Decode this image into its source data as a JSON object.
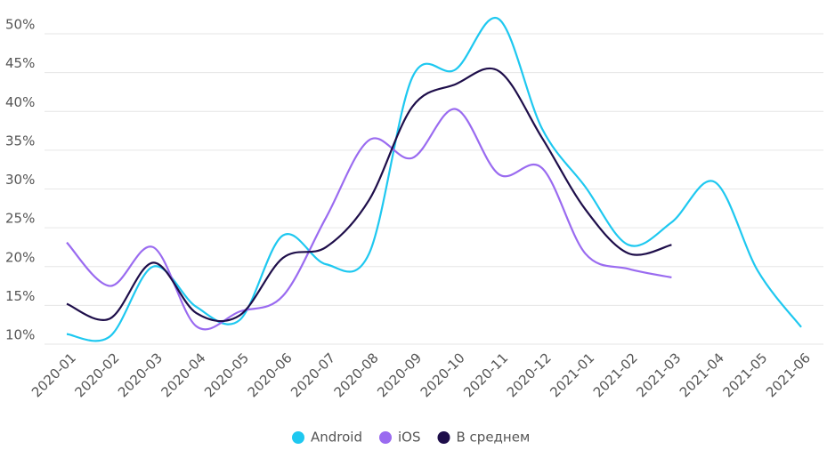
{
  "chart_data": {
    "type": "line",
    "categories": [
      "2020-01",
      "2020-02",
      "2020-03",
      "2020-04",
      "2020-05",
      "2020-06",
      "2020-07",
      "2020-08",
      "2020-09",
      "2020-10",
      "2020-11",
      "2020-12",
      "2021-01",
      "2021-02",
      "2021-03",
      "2021-04",
      "2021-05",
      "2021-06"
    ],
    "series": [
      {
        "name": "Android",
        "color": "#1ec8f0",
        "values": [
          11.3,
          11.0,
          20.0,
          14.8,
          13.1,
          24.0,
          20.3,
          21.7,
          44.4,
          45.4,
          51.9,
          37.8,
          30.3,
          22.8,
          25.7,
          30.9,
          19.4,
          12.2
        ]
      },
      {
        "name": "iOS",
        "color": "#9a6bf0",
        "values": [
          23.1,
          17.5,
          22.5,
          12.3,
          14.2,
          16.2,
          26.3,
          36.3,
          34.0,
          40.3,
          31.9,
          32.7,
          21.7,
          19.7,
          18.6,
          null,
          null,
          null
        ]
      },
      {
        "name": "В среднем",
        "color": "#1e0e4a",
        "values": [
          15.2,
          13.3,
          20.5,
          14.0,
          13.7,
          21.1,
          22.5,
          28.6,
          40.6,
          43.5,
          45.2,
          36.6,
          27.4,
          21.7,
          22.8,
          null,
          null,
          null
        ]
      }
    ],
    "ylim": [
      10,
      50
    ],
    "yticks": [
      {
        "value": 10,
        "label": "10%"
      },
      {
        "value": 15,
        "label": "15%"
      },
      {
        "value": 20,
        "label": "20%"
      },
      {
        "value": 25,
        "label": "25%"
      },
      {
        "value": 30,
        "label": "30%"
      },
      {
        "value": 35,
        "label": "35%"
      },
      {
        "value": 40,
        "label": "40%"
      },
      {
        "value": 45,
        "label": "45%"
      },
      {
        "value": 50,
        "label": "50%"
      }
    ],
    "grid": true,
    "legend": "bottom"
  }
}
